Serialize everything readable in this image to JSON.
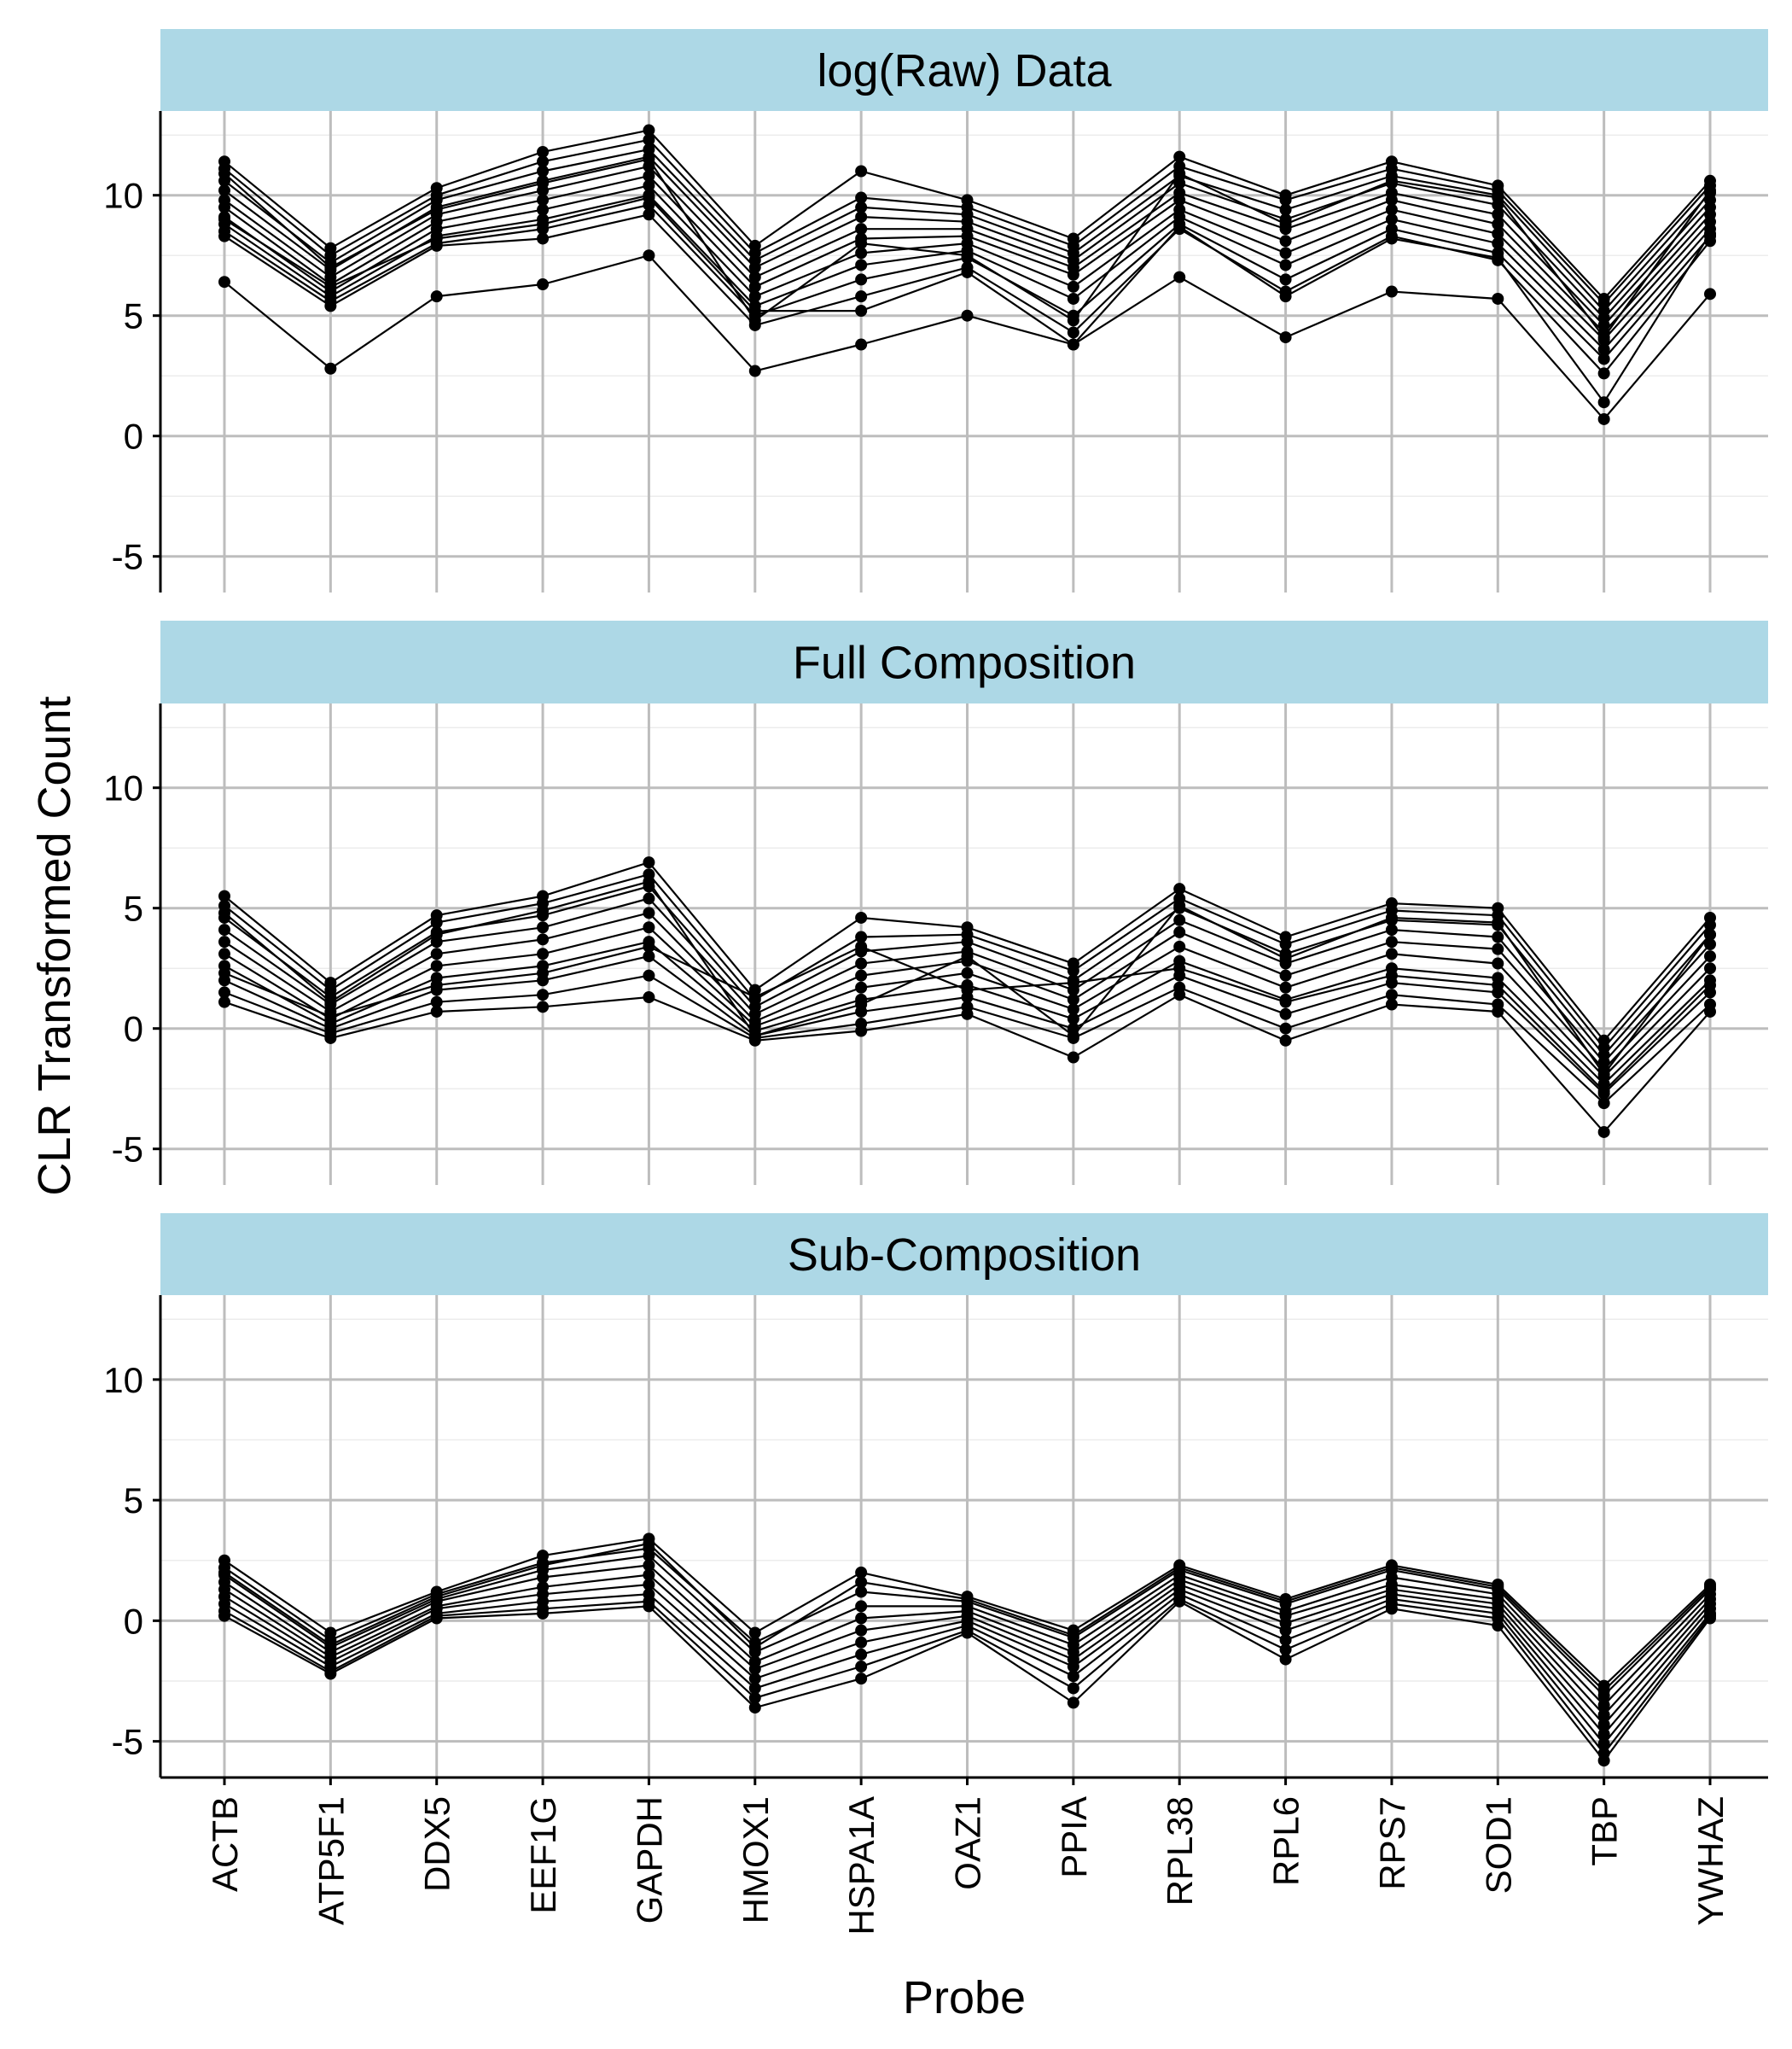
{
  "chart_data": {
    "type": "line",
    "xlabel": "Probe",
    "ylabel": "CLR Transformed Count",
    "ylim": [
      -6.5,
      13.5
    ],
    "yticks": [
      -5,
      0,
      5,
      10
    ],
    "grid": true,
    "legend": "none",
    "strip_color": "#add8e6",
    "categories": [
      "ACTB",
      "ATP5F1",
      "DDX5",
      "EEF1G",
      "GAPDH",
      "HMOX1",
      "HSPA1A",
      "OAZ1",
      "PPIA",
      "RPL38",
      "RPL6",
      "RPS7",
      "SOD1",
      "TBP",
      "YWHAZ"
    ],
    "panels": [
      {
        "title": "log(Raw) Data",
        "series": [
          {
            "values": [
              11.4,
              7.8,
              10.3,
              11.8,
              12.7,
              7.9,
              11.0,
              9.8,
              8.2,
              11.6,
              10.0,
              11.4,
              10.4,
              5.7,
              10.6
            ]
          },
          {
            "values": [
              11.1,
              7.5,
              10.0,
              11.4,
              12.3,
              7.6,
              9.9,
              9.5,
              7.9,
              11.2,
              9.8,
              11.1,
              10.2,
              5.5,
              10.4
            ]
          },
          {
            "values": [
              10.6,
              7.2,
              9.8,
              11.0,
              11.9,
              7.3,
              9.5,
              9.2,
              7.6,
              10.8,
              9.4,
              10.8,
              10.0,
              5.2,
              10.1
            ]
          },
          {
            "values": [
              10.2,
              6.9,
              9.5,
              10.6,
              11.6,
              7.0,
              9.1,
              8.9,
              7.3,
              10.5,
              9.0,
              10.5,
              9.6,
              4.9,
              9.8
            ]
          },
          {
            "values": [
              9.8,
              6.6,
              9.2,
              10.2,
              11.2,
              6.6,
              8.6,
              8.6,
              7.0,
              10.1,
              8.6,
              10.1,
              9.2,
              4.6,
              9.5
            ]
          },
          {
            "values": [
              9.5,
              6.3,
              8.9,
              9.8,
              10.8,
              6.2,
              8.2,
              8.3,
              6.7,
              9.8,
              8.1,
              9.8,
              8.8,
              4.3,
              9.2
            ]
          },
          {
            "values": [
              9.1,
              6.0,
              8.6,
              9.4,
              10.4,
              5.8,
              7.6,
              8.0,
              6.2,
              9.4,
              7.6,
              9.4,
              8.4,
              4.0,
              8.9
            ]
          },
          {
            "values": [
              8.8,
              5.8,
              8.3,
              9.0,
              10.0,
              5.4,
              7.1,
              7.7,
              5.7,
              9.1,
              7.1,
              9.0,
              8.0,
              3.6,
              8.6
            ]
          },
          {
            "values": [
              8.5,
              5.6,
              8.0,
              8.6,
              9.6,
              5.0,
              6.5,
              7.4,
              5.0,
              8.8,
              6.5,
              8.6,
              7.6,
              3.2,
              8.3
            ]
          },
          {
            "values": [
              8.3,
              5.4,
              7.9,
              8.2,
              9.2,
              4.6,
              5.8,
              7.0,
              4.3,
              8.6,
              6.0,
              8.3,
              7.3,
              2.6,
              8.1
            ]
          },
          {
            "values": [
              10.9,
              7.0,
              9.4,
              10.5,
              11.5,
              4.8,
              8.0,
              7.5,
              4.8,
              10.9,
              8.8,
              10.6,
              9.9,
              4.1,
              10.2
            ]
          },
          {
            "values": [
              9.0,
              6.2,
              8.2,
              8.8,
              9.9,
              5.2,
              5.2,
              6.8,
              3.8,
              8.7,
              5.8,
              8.2,
              7.4,
              1.4,
              8.4
            ]
          },
          {
            "values": [
              6.4,
              2.8,
              5.8,
              6.3,
              7.5,
              2.7,
              3.8,
              5.0,
              3.8,
              6.6,
              4.1,
              6.0,
              5.7,
              0.7,
              5.9
            ]
          }
        ]
      },
      {
        "title": "Full Composition",
        "series": [
          {
            "values": [
              5.5,
              1.9,
              4.7,
              5.5,
              6.9,
              1.6,
              4.6,
              4.2,
              2.7,
              5.8,
              3.8,
              5.2,
              5.0,
              -0.5,
              4.6
            ]
          },
          {
            "values": [
              5.1,
              1.6,
              4.4,
              5.2,
              6.4,
              1.2,
              3.8,
              3.9,
              2.4,
              5.4,
              3.5,
              4.9,
              4.7,
              -0.8,
              4.3
            ]
          },
          {
            "values": [
              4.6,
              1.3,
              4.0,
              4.7,
              5.9,
              0.9,
              3.2,
              3.6,
              2.0,
              5.0,
              3.1,
              4.5,
              4.3,
              -1.1,
              3.9
            ]
          },
          {
            "values": [
              4.1,
              1.0,
              3.6,
              4.2,
              5.4,
              0.6,
              2.7,
              3.2,
              1.6,
              4.5,
              2.7,
              4.1,
              3.8,
              -1.4,
              3.5
            ]
          },
          {
            "values": [
              3.6,
              0.7,
              3.1,
              3.7,
              4.8,
              0.3,
              2.2,
              2.8,
              1.2,
              4.0,
              2.2,
              3.6,
              3.3,
              -1.7,
              3.0
            ]
          },
          {
            "values": [
              3.1,
              0.4,
              2.6,
              3.1,
              4.2,
              0.1,
              1.7,
              2.3,
              0.8,
              3.4,
              1.7,
              3.1,
              2.7,
              -2.0,
              2.5
            ]
          },
          {
            "values": [
              2.6,
              0.2,
              2.1,
              2.6,
              3.6,
              -0.1,
              1.2,
              1.8,
              0.4,
              2.8,
              1.2,
              2.5,
              2.1,
              -2.3,
              2.0
            ]
          },
          {
            "values": [
              2.0,
              0.0,
              1.6,
              2.0,
              3.0,
              -0.3,
              0.7,
              1.3,
              0.0,
              2.2,
              0.6,
              1.9,
              1.5,
              -2.7,
              1.5
            ]
          },
          {
            "values": [
              1.5,
              -0.2,
              1.1,
              1.4,
              2.2,
              -0.4,
              0.2,
              0.9,
              -0.4,
              1.7,
              0.0,
              1.4,
              1.0,
              -3.1,
              1.0
            ]
          },
          {
            "values": [
              1.1,
              -0.4,
              0.7,
              0.9,
              1.3,
              -0.5,
              -0.1,
              0.6,
              -1.2,
              1.4,
              -0.5,
              1.0,
              0.7,
              -4.3,
              0.7
            ]
          },
          {
            "values": [
              4.8,
              1.1,
              3.9,
              4.9,
              6.1,
              -0.3,
              1.0,
              3.0,
              -0.3,
              5.1,
              2.9,
              4.6,
              4.4,
              -1.9,
              3.9
            ]
          },
          {
            "values": [
              2.3,
              0.5,
              1.8,
              2.3,
              3.4,
              1.3,
              3.4,
              1.6,
              1.9,
              2.5,
              1.1,
              2.2,
              1.8,
              -2.6,
              1.8
            ]
          }
        ]
      },
      {
        "title": "Sub-Composition",
        "series": [
          {
            "values": [
              2.5,
              -0.5,
              1.2,
              2.7,
              3.4,
              -0.5,
              2.0,
              1.0,
              -0.4,
              2.3,
              0.9,
              2.3,
              1.5,
              -2.7,
              1.5
            ]
          },
          {
            "values": [
              2.2,
              -0.8,
              1.1,
              2.4,
              3.0,
              -0.9,
              1.2,
              0.8,
              -0.7,
              2.1,
              0.7,
              2.1,
              1.3,
              -3.1,
              1.3
            ]
          },
          {
            "values": [
              1.9,
              -1.1,
              0.9,
              2.1,
              2.7,
              -1.3,
              0.6,
              0.6,
              -1.0,
              1.9,
              0.4,
              1.8,
              1.1,
              -3.5,
              1.1
            ]
          },
          {
            "values": [
              1.6,
              -1.3,
              0.8,
              1.8,
              2.3,
              -1.7,
              0.1,
              0.4,
              -1.3,
              1.7,
              0.2,
              1.5,
              0.9,
              -3.9,
              0.9
            ]
          },
          {
            "values": [
              1.3,
              -1.5,
              0.6,
              1.4,
              1.9,
              -2.0,
              -0.4,
              0.2,
              -1.6,
              1.5,
              -0.1,
              1.3,
              0.7,
              -4.3,
              0.7
            ]
          },
          {
            "values": [
              1.0,
              -1.7,
              0.5,
              1.1,
              1.5,
              -2.4,
              -0.9,
              0.0,
              -1.9,
              1.3,
              -0.4,
              1.1,
              0.5,
              -4.7,
              0.5
            ]
          },
          {
            "values": [
              0.7,
              -1.9,
              0.3,
              0.8,
              1.1,
              -2.8,
              -1.4,
              -0.2,
              -2.3,
              1.1,
              -0.8,
              0.9,
              0.3,
              -5.1,
              0.3
            ]
          },
          {
            "values": [
              0.4,
              -2.1,
              0.2,
              0.5,
              0.8,
              -3.2,
              -1.9,
              -0.4,
              -2.8,
              0.9,
              -1.2,
              0.7,
              0.1,
              -5.5,
              0.2
            ]
          },
          {
            "values": [
              0.2,
              -2.2,
              0.1,
              0.3,
              0.6,
              -3.6,
              -2.4,
              -0.5,
              -3.4,
              0.8,
              -1.6,
              0.5,
              -0.2,
              -5.8,
              0.1
            ]
          },
          {
            "values": [
              2.0,
              -1.0,
              1.0,
              2.3,
              3.2,
              -1.1,
              1.6,
              0.9,
              -0.6,
              2.2,
              0.8,
              2.2,
              1.4,
              -2.9,
              1.4
            ]
          }
        ]
      }
    ]
  }
}
